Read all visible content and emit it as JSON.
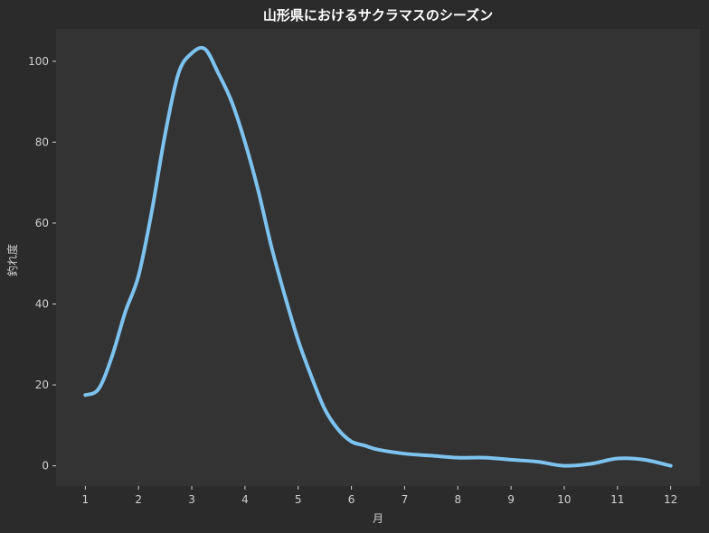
{
  "chart_data": {
    "type": "line",
    "title": "山形県におけるサクラマスのシーズン",
    "xlabel": "月",
    "ylabel": "釣れ度",
    "xlim": [
      0.45,
      12.55
    ],
    "ylim": [
      -5,
      108
    ],
    "xticks": [
      1,
      2,
      3,
      4,
      5,
      6,
      7,
      8,
      9,
      10,
      11,
      12
    ],
    "yticks": [
      0,
      20,
      40,
      60,
      80,
      100
    ],
    "grid": false,
    "legend": "none",
    "colors": {
      "background": "#2b2b2b",
      "plot_area": "#333333",
      "line": "#7dc3f0",
      "text": "#d0d0d0",
      "title": "#ffffff"
    },
    "series": [
      {
        "x": [
          1,
          1.25,
          1.5,
          1.75,
          2,
          2.25,
          2.5,
          2.75,
          3,
          3.25,
          3.5,
          3.75,
          4,
          4.25,
          4.5,
          4.75,
          5,
          5.25,
          5.5,
          5.75,
          6,
          6.25,
          6.5,
          7,
          7.5,
          8,
          8.5,
          9,
          9.5,
          10,
          10.5,
          11,
          11.5,
          12
        ],
        "values": [
          17.5,
          19,
          27,
          38,
          47,
          63,
          82,
          97,
          102,
          103,
          97,
          90,
          80,
          68,
          54,
          42,
          31,
          22,
          14,
          9,
          6,
          5,
          4,
          3,
          2.5,
          2,
          2,
          1.5,
          1,
          0,
          0.5,
          1.8,
          1.5,
          0
        ]
      }
    ]
  }
}
